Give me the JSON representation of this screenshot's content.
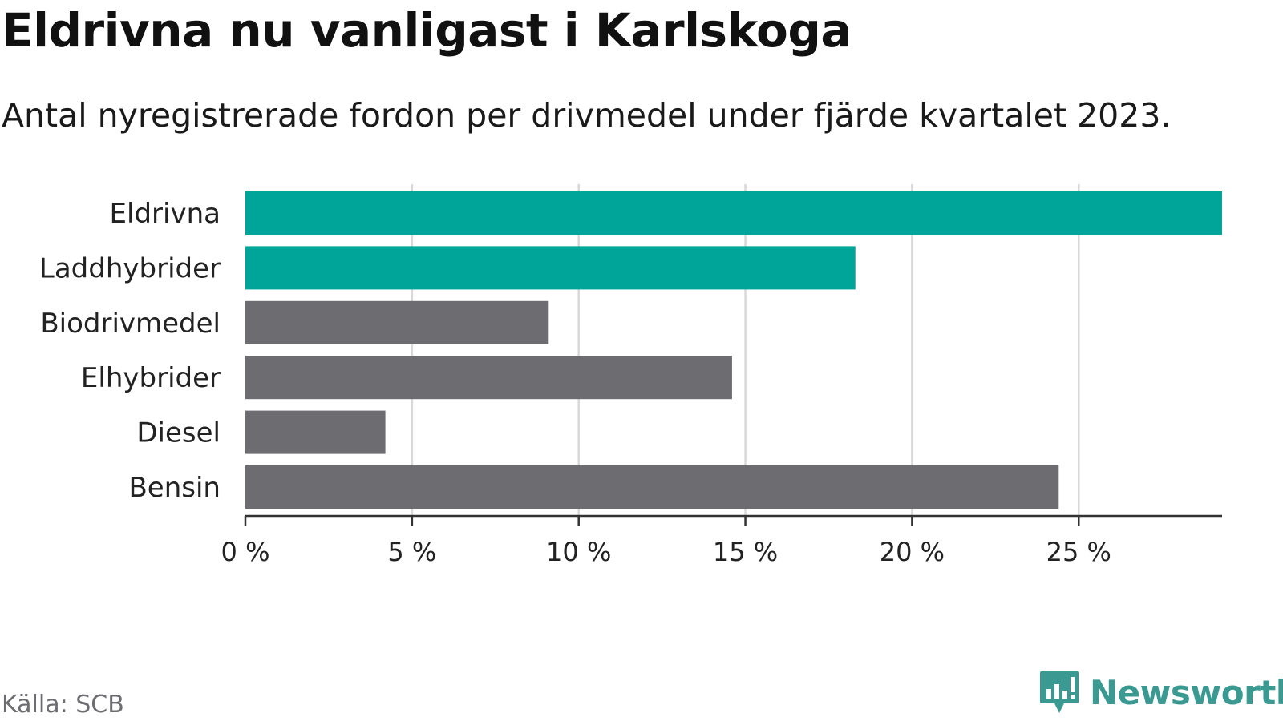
{
  "title": "Eldrivna nu vanligast i Karlskoga",
  "subtitle": "Antal nyregistrerade fordon per drivmedel under fjärde kvartalet 2023.",
  "source": "Källa: SCB",
  "brand": {
    "name": "Newsworthy",
    "logo_icon": "newsworthy-chart-bubble-icon",
    "color": "#3a9a92"
  },
  "colors": {
    "highlight": "#00a59a",
    "default": "#6d6c71",
    "grid": "#d8d8d8",
    "axis": "#333333"
  },
  "chart_data": {
    "type": "bar",
    "orientation": "horizontal",
    "categories": [
      "Eldrivna",
      "Laddhybrider",
      "Biodrivmedel",
      "Elhybrider",
      "Diesel",
      "Bensin"
    ],
    "values": [
      29.3,
      18.3,
      9.1,
      14.6,
      4.2,
      24.4
    ],
    "highlighted": [
      true,
      true,
      false,
      false,
      false,
      false
    ],
    "xlim": [
      0,
      29.3
    ],
    "xticks": [
      0,
      5,
      10,
      15,
      20,
      25
    ],
    "xtick_labels": [
      "0 %",
      "5 %",
      "10 %",
      "15 %",
      "20 %",
      "25 %"
    ],
    "unit": "%",
    "grid": "vertical",
    "legend": "none"
  }
}
